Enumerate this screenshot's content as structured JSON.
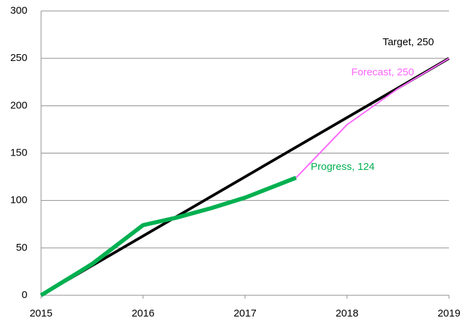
{
  "chart_data": {
    "type": "line",
    "xlim": [
      2015,
      2019
    ],
    "xticks": [
      2015,
      2016,
      2017,
      2018,
      2019
    ],
    "ylim": [
      0,
      300
    ],
    "yticks": [
      0,
      50,
      100,
      150,
      200,
      250,
      300
    ],
    "grid": true,
    "series": [
      {
        "name": "Target",
        "color": "#000000",
        "label": "Target, 250",
        "x": [
          2015,
          2016,
          2017,
          2018,
          2019
        ],
        "values": [
          0,
          62.5,
          125,
          187.5,
          250
        ]
      },
      {
        "name": "Forecast",
        "color": "#ff66ff",
        "label": "Forecast, 250",
        "x": [
          2017.5,
          2018,
          2018.5,
          2019
        ],
        "values": [
          124,
          180,
          218,
          250
        ]
      },
      {
        "name": "Progress",
        "color": "#00b050",
        "label": "Progress, 124",
        "x": [
          2015,
          2015.5,
          2016,
          2016.33,
          2016.67,
          2017,
          2017.5
        ],
        "values": [
          0,
          33,
          74,
          82,
          92,
          103,
          124
        ]
      }
    ]
  }
}
